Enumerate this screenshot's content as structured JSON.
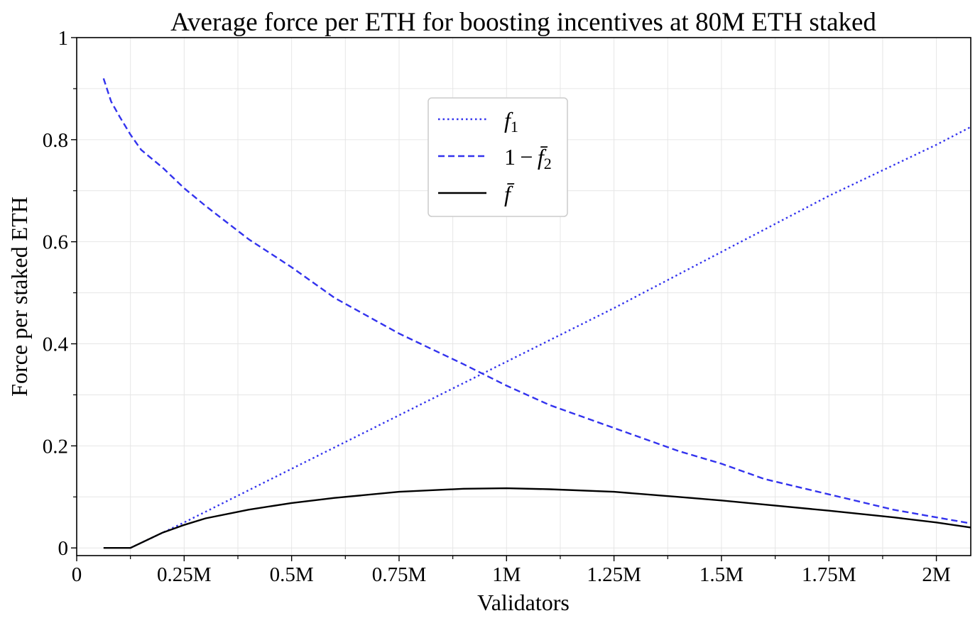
{
  "chart_data": {
    "type": "line",
    "title": "Average force per ETH for boosting incentives at 80M ETH staked",
    "xlabel": "Validators",
    "ylabel": "Force per staked ETH",
    "xlim": [
      0,
      2.08
    ],
    "ylim": [
      -0.015,
      1.0
    ],
    "x_unit": "million validators",
    "xticks": [
      {
        "value": 0,
        "label": "0"
      },
      {
        "value": 0.25,
        "label": "0.25M"
      },
      {
        "value": 0.5,
        "label": "0.5M"
      },
      {
        "value": 0.75,
        "label": "0.75M"
      },
      {
        "value": 1.0,
        "label": "1M"
      },
      {
        "value": 1.25,
        "label": "1.25M"
      },
      {
        "value": 1.5,
        "label": "1.5M"
      },
      {
        "value": 1.75,
        "label": "1.75M"
      },
      {
        "value": 2.0,
        "label": "2M"
      }
    ],
    "yticks": [
      {
        "value": 0,
        "label": "0"
      },
      {
        "value": 0.2,
        "label": "0.2"
      },
      {
        "value": 0.4,
        "label": "0.4"
      },
      {
        "value": 0.6,
        "label": "0.6"
      },
      {
        "value": 0.8,
        "label": "0.8"
      },
      {
        "value": 1.0,
        "label": "1"
      }
    ],
    "grid": true,
    "legend_position": "upper-center",
    "series": [
      {
        "name": "f₁",
        "style": "dotted",
        "color": "#3333ee",
        "x": [
          0.125,
          0.25,
          0.5,
          0.75,
          1.0,
          1.25,
          1.5,
          1.75,
          2.0,
          2.08
        ],
        "y": [
          0.0,
          0.05,
          0.155,
          0.26,
          0.365,
          0.47,
          0.58,
          0.69,
          0.79,
          0.825
        ]
      },
      {
        "name": "1 − f̄₂",
        "style": "dashed",
        "color": "#3333ee",
        "x": [
          0.0625,
          0.08,
          0.1,
          0.125,
          0.15,
          0.2,
          0.25,
          0.3,
          0.4,
          0.5,
          0.6,
          0.75,
          0.9,
          1.0,
          1.1,
          1.25,
          1.4,
          1.5,
          1.6,
          1.75,
          1.9,
          2.0,
          2.08
        ],
        "y": [
          0.92,
          0.875,
          0.845,
          0.81,
          0.78,
          0.745,
          0.705,
          0.67,
          0.605,
          0.55,
          0.49,
          0.42,
          0.36,
          0.318,
          0.28,
          0.235,
          0.19,
          0.165,
          0.135,
          0.105,
          0.075,
          0.06,
          0.048
        ]
      },
      {
        "name": "f̄",
        "style": "solid",
        "color": "#000000",
        "x": [
          0.0625,
          0.125,
          0.2,
          0.25,
          0.3,
          0.4,
          0.5,
          0.6,
          0.75,
          0.9,
          1.0,
          1.1,
          1.25,
          1.4,
          1.5,
          1.6,
          1.75,
          1.9,
          2.0,
          2.08
        ],
        "y": [
          0.0,
          0.0,
          0.03,
          0.045,
          0.058,
          0.075,
          0.088,
          0.098,
          0.11,
          0.116,
          0.117,
          0.115,
          0.11,
          0.1,
          0.093,
          0.085,
          0.073,
          0.06,
          0.05,
          0.04
        ]
      }
    ]
  },
  "legend": {
    "f1": {
      "base": "f",
      "sub": "1"
    },
    "one_minus_f2": {
      "prefix": "1 − ",
      "base": "f̄",
      "sub": "2"
    },
    "fbar": {
      "base": "f̄"
    }
  }
}
